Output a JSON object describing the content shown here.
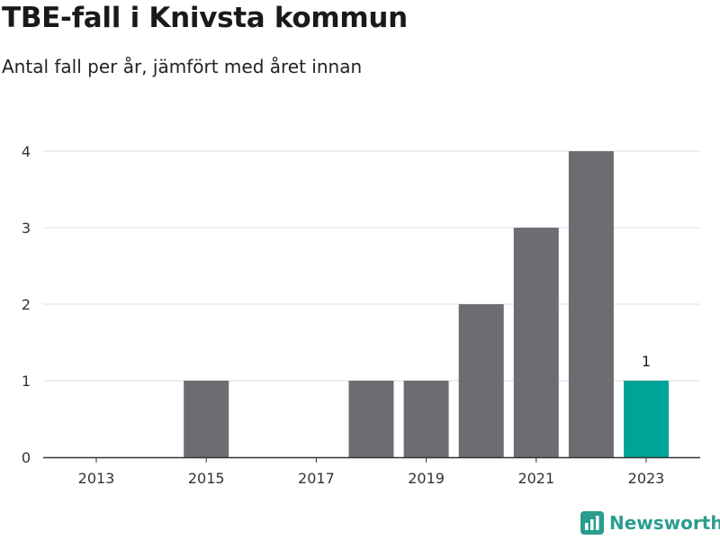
{
  "title": "TBE-fall i Knivsta kommun",
  "subtitle": "Antal fall per år, jämfört med året innan",
  "brand": {
    "name": "Newsworthy",
    "icon": "bar-chart-logo-icon",
    "color": "#2a9d8f"
  },
  "colors": {
    "bar": "#6d6c72",
    "highlight": "#00a398",
    "grid": "#dddddd",
    "axis": "#333333"
  },
  "chart_data": {
    "type": "bar",
    "title": "TBE-fall i Knivsta kommun",
    "subtitle": "Antal fall per år, jämfört med året innan",
    "categories": [
      2013,
      2014,
      2015,
      2016,
      2017,
      2018,
      2019,
      2020,
      2021,
      2022,
      2023
    ],
    "values": [
      0,
      0,
      1,
      0,
      0,
      1,
      1,
      2,
      3,
      4,
      1
    ],
    "highlight_index": 10,
    "data_labels": [
      {
        "index": 10,
        "text": "1"
      }
    ],
    "xticks": [
      "2013",
      "2015",
      "2017",
      "2019",
      "2021",
      "2023"
    ],
    "yticks": [
      "0",
      "1",
      "2",
      "3",
      "4"
    ],
    "ylim": [
      0,
      4
    ],
    "grid": true,
    "xlabel": "",
    "ylabel": ""
  }
}
